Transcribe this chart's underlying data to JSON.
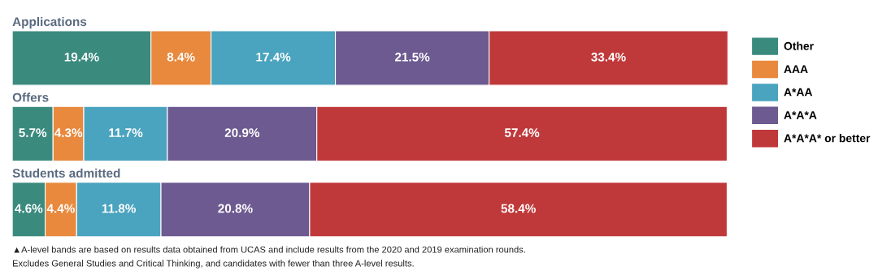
{
  "chart_data": {
    "type": "bar",
    "orientation": "horizontal",
    "stacked": true,
    "categories": [
      "Applications",
      "Offers",
      "Students admitted"
    ],
    "series": [
      {
        "name": "Other",
        "color": "#3a8a7e",
        "values": [
          19.4,
          5.7,
          4.6
        ],
        "value_labels": [
          "19.4%",
          "5.7%",
          "4.6%"
        ]
      },
      {
        "name": "AAA",
        "color": "#e8893e",
        "values": [
          8.4,
          4.3,
          4.4
        ],
        "value_labels": [
          "8.4%",
          "4.3%",
          "4.4%"
        ]
      },
      {
        "name": "A*AA",
        "color": "#4aa3bf",
        "values": [
          17.4,
          11.7,
          11.8
        ],
        "value_labels": [
          "17.4%",
          "11.7%",
          "11.8%"
        ]
      },
      {
        "name": "A*A*A",
        "color": "#6c5a91",
        "values": [
          21.5,
          20.9,
          20.8
        ],
        "value_labels": [
          "21.5%",
          "20.9%",
          "20.8%"
        ]
      },
      {
        "name": "A*A*A* or better",
        "color": "#c0393a",
        "values": [
          33.4,
          57.4,
          58.4
        ],
        "value_labels": [
          "33.4%",
          "57.4%",
          "58.4%"
        ]
      }
    ],
    "legend": "right",
    "annotations": [
      "▲A-level bands are based on results data obtained from UCAS and include results from the 2020 and 2019 examination rounds.",
      "Excludes General Studies and Critical Thinking, and candidates with fewer than three A-level results."
    ]
  }
}
